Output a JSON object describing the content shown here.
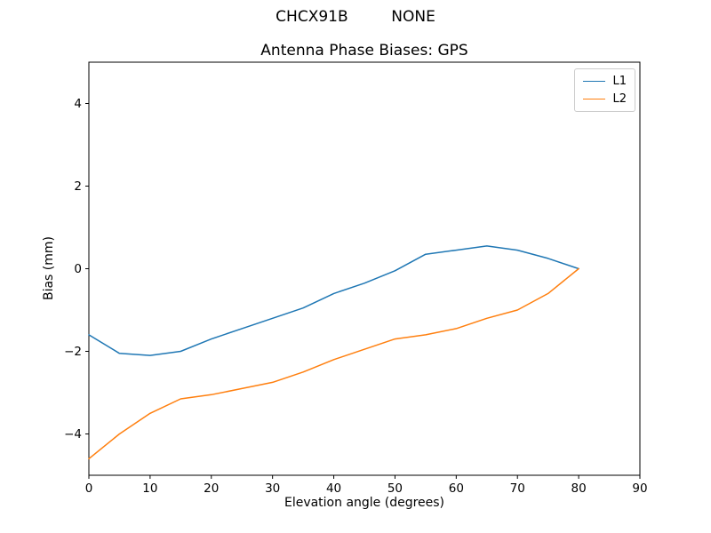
{
  "figure": {
    "suptitle": "CHCX91B         NONE",
    "background": "#ffffff"
  },
  "chart_data": {
    "type": "line",
    "title": "Antenna Phase Biases: GPS",
    "xlabel": "Elevation angle (degrees)",
    "ylabel": "Bias (mm)",
    "xlim": [
      0,
      90
    ],
    "ylim": [
      -5,
      5
    ],
    "xticks": [
      0,
      10,
      20,
      30,
      40,
      50,
      60,
      70,
      80,
      90
    ],
    "yticks": [
      -4,
      -2,
      0,
      2,
      4
    ],
    "grid": false,
    "legend_position": "upper right",
    "x": [
      0,
      5,
      10,
      15,
      20,
      25,
      30,
      35,
      40,
      45,
      50,
      55,
      60,
      65,
      70,
      75,
      80
    ],
    "series": [
      {
        "name": "L1",
        "color": "#1f77b4",
        "values": [
          -1.6,
          -2.05,
          -2.1,
          -2.0,
          -1.7,
          -1.45,
          -1.2,
          -0.95,
          -0.6,
          -0.35,
          -0.05,
          0.35,
          0.45,
          0.55,
          0.45,
          0.25,
          0.0
        ]
      },
      {
        "name": "L2",
        "color": "#ff7f0e",
        "values": [
          -4.6,
          -4.0,
          -3.5,
          -3.15,
          -3.05,
          -2.9,
          -2.75,
          -2.5,
          -2.2,
          -1.95,
          -1.7,
          -1.6,
          -1.45,
          -1.2,
          -1.0,
          -0.6,
          0.0
        ]
      }
    ]
  }
}
